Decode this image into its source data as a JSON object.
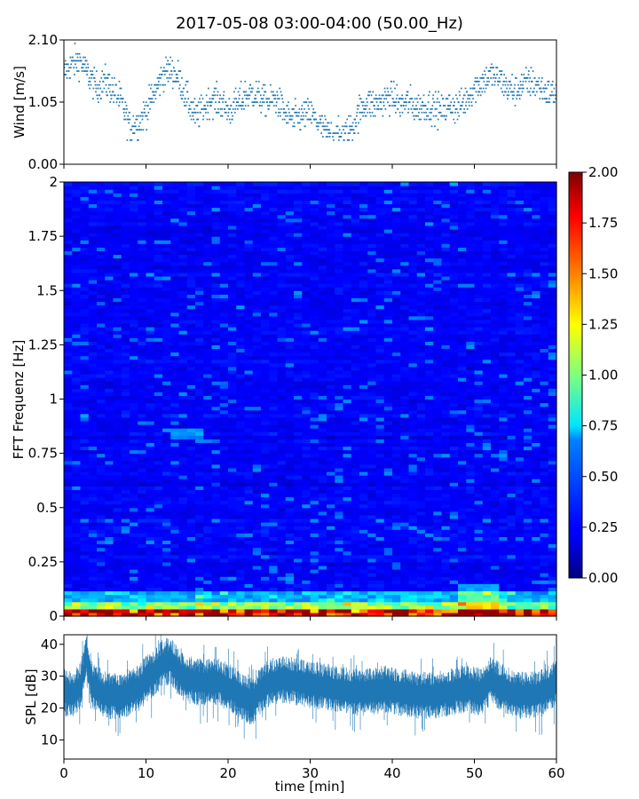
{
  "title": "2017-05-08 03:00-04:00 (50.00_Hz)",
  "chart_data": [
    {
      "type": "scatter",
      "name": "wind",
      "ylabel": "Wind [m/s]",
      "ylim": [
        0,
        2.1
      ],
      "yticks": [
        {
          "value": 0,
          "label": "0.00"
        },
        {
          "value": 1.05,
          "label": "1.05"
        },
        {
          "value": 2.1,
          "label": "2.10"
        }
      ],
      "xlim": [
        0,
        60
      ],
      "color": "#1f77b4",
      "profile": [
        [
          0,
          1.55
        ],
        [
          1,
          1.7
        ],
        [
          2,
          1.75
        ],
        [
          3,
          1.5
        ],
        [
          4,
          1.3
        ],
        [
          5,
          1.4
        ],
        [
          6,
          1.25
        ],
        [
          7,
          1.05
        ],
        [
          8,
          0.65
        ],
        [
          9,
          0.7
        ],
        [
          10,
          0.9
        ],
        [
          11,
          1.2
        ],
        [
          12,
          1.5
        ],
        [
          13,
          1.6
        ],
        [
          14,
          1.45
        ],
        [
          15,
          1.1
        ],
        [
          16,
          0.8
        ],
        [
          17,
          0.95
        ],
        [
          18,
          1.1
        ],
        [
          19,
          1.05
        ],
        [
          20,
          0.9
        ],
        [
          21,
          1.0
        ],
        [
          22,
          1.15
        ],
        [
          23,
          1.2
        ],
        [
          24,
          1.1
        ],
        [
          25,
          1.05
        ],
        [
          26,
          1.1
        ],
        [
          27,
          0.85
        ],
        [
          28,
          0.75
        ],
        [
          29,
          0.8
        ],
        [
          30,
          0.85
        ],
        [
          31,
          0.7
        ],
        [
          32,
          0.55
        ],
        [
          33,
          0.45
        ],
        [
          34,
          0.5
        ],
        [
          35,
          0.6
        ],
        [
          36,
          0.9
        ],
        [
          37,
          1.05
        ],
        [
          38,
          1.0
        ],
        [
          39,
          1.1
        ],
        [
          40,
          1.15
        ],
        [
          41,
          1.0
        ],
        [
          42,
          1.05
        ],
        [
          43,
          0.95
        ],
        [
          44,
          1.0
        ],
        [
          45,
          0.95
        ],
        [
          46,
          0.9
        ],
        [
          47,
          1.0
        ],
        [
          48,
          0.95
        ],
        [
          49,
          1.1
        ],
        [
          50,
          1.3
        ],
        [
          51,
          1.4
        ],
        [
          52,
          1.5
        ],
        [
          53,
          1.45
        ],
        [
          54,
          1.3
        ],
        [
          55,
          1.25
        ],
        [
          56,
          1.35
        ],
        [
          57,
          1.4
        ],
        [
          58,
          1.3
        ],
        [
          59,
          1.2
        ],
        [
          60,
          1.2
        ]
      ]
    },
    {
      "type": "heatmap",
      "name": "spectrogram",
      "ylabel": "FFT Frequenz [Hz]",
      "ylim": [
        0,
        2
      ],
      "yticks": [
        {
          "value": 0,
          "label": "0"
        },
        {
          "value": 0.25,
          "label": "0.25"
        },
        {
          "value": 0.5,
          "label": "0.5"
        },
        {
          "value": 0.75,
          "label": "0.75"
        },
        {
          "value": 1,
          "label": "1"
        },
        {
          "value": 1.25,
          "label": "1.25"
        },
        {
          "value": 1.5,
          "label": "1.5"
        },
        {
          "value": 1.75,
          "label": "1.75"
        },
        {
          "value": 2,
          "label": "2"
        }
      ],
      "xlim": [
        0,
        60
      ],
      "colormap": "jet",
      "colorbar": {
        "range": [
          0,
          2
        ],
        "ticks": [
          "0.00",
          "0.25",
          "0.50",
          "0.75",
          "1.00",
          "1.25",
          "1.50",
          "1.75",
          "2.00"
        ]
      }
    },
    {
      "type": "line",
      "name": "spl",
      "ylabel": "SPL [dB]",
      "xlabel": "time [min]",
      "ylim": [
        4,
        43
      ],
      "yticks": [
        {
          "value": 10,
          "label": "10"
        },
        {
          "value": 20,
          "label": "20"
        },
        {
          "value": 30,
          "label": "30"
        },
        {
          "value": 40,
          "label": "40"
        }
      ],
      "xlim": [
        0,
        60
      ],
      "xticks": [
        {
          "value": 0,
          "label": "0"
        },
        {
          "value": 10,
          "label": "10"
        },
        {
          "value": 20,
          "label": "20"
        },
        {
          "value": 30,
          "label": "30"
        },
        {
          "value": 40,
          "label": "40"
        },
        {
          "value": 50,
          "label": "50"
        },
        {
          "value": 60,
          "label": "60"
        }
      ],
      "color": "#1f77b4",
      "envelope": [
        [
          0,
          25
        ],
        [
          1,
          24
        ],
        [
          2,
          27
        ],
        [
          2.8,
          36
        ],
        [
          3.5,
          27
        ],
        [
          5,
          24
        ],
        [
          7,
          24
        ],
        [
          9,
          26
        ],
        [
          10,
          29
        ],
        [
          11,
          31
        ],
        [
          12,
          34
        ],
        [
          13,
          35
        ],
        [
          14,
          31
        ],
        [
          15,
          29
        ],
        [
          17,
          28
        ],
        [
          19,
          28
        ],
        [
          21,
          25
        ],
        [
          22,
          23
        ],
        [
          23,
          22
        ],
        [
          24,
          26
        ],
        [
          25,
          28
        ],
        [
          27,
          29
        ],
        [
          29,
          28
        ],
        [
          31,
          27
        ],
        [
          33,
          26
        ],
        [
          35,
          25
        ],
        [
          37,
          25
        ],
        [
          39,
          26
        ],
        [
          41,
          25
        ],
        [
          43,
          24
        ],
        [
          45,
          24
        ],
        [
          47,
          25
        ],
        [
          49,
          26
        ],
        [
          51,
          25
        ],
        [
          52,
          29
        ],
        [
          53,
          27
        ],
        [
          55,
          24
        ],
        [
          57,
          24
        ],
        [
          58.5,
          25
        ],
        [
          60,
          28
        ]
      ],
      "spread": 5
    }
  ]
}
